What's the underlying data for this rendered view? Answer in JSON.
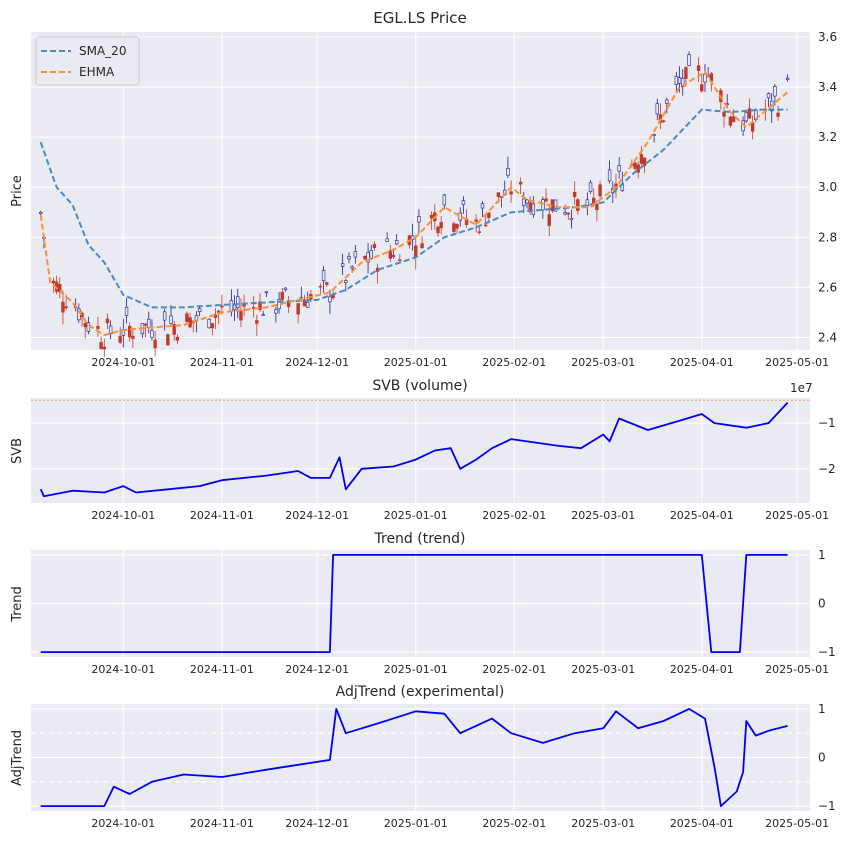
{
  "chart_data": [
    {
      "type": "candlestick",
      "title": "EGL.LS Price",
      "ylabel": "Price",
      "ylim": [
        2.35,
        3.62
      ],
      "yticks": [
        "2.4",
        "2.6",
        "2.8",
        "3.0",
        "3.2",
        "3.4",
        "3.6"
      ],
      "x_start": "2024-09-05",
      "x_end": "2025-04-28",
      "xticks": [
        "2024-10-01",
        "2024-11-01",
        "2024-12-01",
        "2025-01-01",
        "2025-02-01",
        "2025-03-01",
        "2025-04-01",
        "2025-05-01"
      ],
      "legend": {
        "position": "top-left",
        "entries": [
          "SMA_20",
          "EHMA"
        ]
      },
      "colors": {
        "up": "#1f1f8f",
        "down": "#c0392b",
        "sma": "#4a8ac4",
        "ehma": "#ff8f2f",
        "background": "#eaeaf2"
      },
      "series": [
        {
          "name": "SMA_20",
          "style": "dashed",
          "points": [
            [
              "2024-09-05",
              3.18
            ],
            [
              "2024-09-10",
              3.0
            ],
            [
              "2024-09-15",
              2.93
            ],
            [
              "2024-09-20",
              2.77
            ],
            [
              "2024-09-25",
              2.7
            ],
            [
              "2024-10-01",
              2.57
            ],
            [
              "2024-10-10",
              2.52
            ],
            [
              "2024-10-20",
              2.52
            ],
            [
              "2024-11-01",
              2.53
            ],
            [
              "2024-11-15",
              2.54
            ],
            [
              "2024-12-01",
              2.55
            ],
            [
              "2024-12-10",
              2.59
            ],
            [
              "2024-12-20",
              2.67
            ],
            [
              "2025-01-01",
              2.72
            ],
            [
              "2025-01-10",
              2.8
            ],
            [
              "2025-01-20",
              2.84
            ],
            [
              "2025-01-31",
              2.9
            ],
            [
              "2025-02-10",
              2.91
            ],
            [
              "2025-02-20",
              2.92
            ],
            [
              "2025-03-01",
              2.94
            ],
            [
              "2025-03-10",
              3.05
            ],
            [
              "2025-03-20",
              3.15
            ],
            [
              "2025-04-01",
              3.31
            ],
            [
              "2025-04-10",
              3.3
            ],
            [
              "2025-04-20",
              3.31
            ],
            [
              "2025-04-28",
              3.31
            ]
          ]
        },
        {
          "name": "EHMA",
          "style": "dashed",
          "points": [
            [
              "2024-09-05",
              2.89
            ],
            [
              "2024-09-08",
              2.62
            ],
            [
              "2024-09-15",
              2.54
            ],
            [
              "2024-09-20",
              2.45
            ],
            [
              "2024-09-25",
              2.41
            ],
            [
              "2024-10-01",
              2.43
            ],
            [
              "2024-10-10",
              2.44
            ],
            [
              "2024-10-20",
              2.45
            ],
            [
              "2024-11-01",
              2.5
            ],
            [
              "2024-11-15",
              2.52
            ],
            [
              "2024-11-25",
              2.55
            ],
            [
              "2024-12-05",
              2.58
            ],
            [
              "2024-12-15",
              2.7
            ],
            [
              "2024-12-25",
              2.75
            ],
            [
              "2025-01-01",
              2.8
            ],
            [
              "2025-01-10",
              2.92
            ],
            [
              "2025-01-20",
              2.85
            ],
            [
              "2025-01-31",
              3.0
            ],
            [
              "2025-02-05",
              2.95
            ],
            [
              "2025-02-15",
              2.92
            ],
            [
              "2025-02-25",
              2.92
            ],
            [
              "2025-03-05",
              3.0
            ],
            [
              "2025-03-15",
              3.18
            ],
            [
              "2025-03-25",
              3.4
            ],
            [
              "2025-04-02",
              3.46
            ],
            [
              "2025-04-10",
              3.3
            ],
            [
              "2025-04-15",
              3.24
            ],
            [
              "2025-04-28",
              3.38
            ]
          ]
        }
      ]
    },
    {
      "type": "line",
      "title": "SVB (volume)",
      "ylabel": "SVB",
      "offset_text": "1e7",
      "ylim": [
        -2.75,
        -0.45
      ],
      "yticks": [
        "−2",
        "−1"
      ],
      "reference_line": -0.5,
      "series": [
        {
          "name": "SVB",
          "points": [
            [
              "2024-09-05",
              -2.45
            ],
            [
              "2024-09-06",
              -2.6
            ],
            [
              "2024-09-15",
              -2.48
            ],
            [
              "2024-09-25",
              -2.52
            ],
            [
              "2024-10-01",
              -2.38
            ],
            [
              "2024-10-05",
              -2.52
            ],
            [
              "2024-10-15",
              -2.45
            ],
            [
              "2024-10-25",
              -2.38
            ],
            [
              "2024-11-01",
              -2.25
            ],
            [
              "2024-11-15",
              -2.15
            ],
            [
              "2024-11-25",
              -2.05
            ],
            [
              "2024-11-29",
              -2.2
            ],
            [
              "2024-12-05",
              -2.2
            ],
            [
              "2024-12-08",
              -1.75
            ],
            [
              "2024-12-10",
              -2.45
            ],
            [
              "2024-12-15",
              -2.0
            ],
            [
              "2024-12-25",
              -1.95
            ],
            [
              "2025-01-01",
              -1.8
            ],
            [
              "2025-01-07",
              -1.6
            ],
            [
              "2025-01-12",
              -1.55
            ],
            [
              "2025-01-15",
              -2.0
            ],
            [
              "2025-01-20",
              -1.8
            ],
            [
              "2025-01-25",
              -1.55
            ],
            [
              "2025-01-31",
              -1.35
            ],
            [
              "2025-02-15",
              -1.5
            ],
            [
              "2025-02-22",
              -1.55
            ],
            [
              "2025-03-01",
              -1.25
            ],
            [
              "2025-03-03",
              -1.4
            ],
            [
              "2025-03-06",
              -0.9
            ],
            [
              "2025-03-15",
              -1.15
            ],
            [
              "2025-03-25",
              -0.95
            ],
            [
              "2025-04-01",
              -0.8
            ],
            [
              "2025-04-05",
              -1.0
            ],
            [
              "2025-04-15",
              -1.1
            ],
            [
              "2025-04-22",
              -1.0
            ],
            [
              "2025-04-28",
              -0.55
            ]
          ]
        }
      ]
    },
    {
      "type": "line",
      "title": "Trend (trend)",
      "ylabel": "Trend",
      "ylim": [
        -1.1,
        1.1
      ],
      "yticks": [
        "−1",
        "0",
        "1"
      ],
      "series": [
        {
          "name": "Trend",
          "points": [
            [
              "2024-09-05",
              -1
            ],
            [
              "2024-12-05",
              -1
            ],
            [
              "2024-12-06",
              1
            ],
            [
              "2025-04-01",
              1
            ],
            [
              "2025-04-04",
              -1
            ],
            [
              "2025-04-13",
              -1
            ],
            [
              "2025-04-15",
              1
            ],
            [
              "2025-04-28",
              1
            ]
          ]
        }
      ]
    },
    {
      "type": "line",
      "title": "AdjTrend (experimental)",
      "ylabel": "AdjTrend",
      "ylim": [
        -1.1,
        1.1
      ],
      "yticks": [
        "−1",
        "0",
        "1"
      ],
      "reference_lines": [
        0.5,
        -0.5
      ],
      "series": [
        {
          "name": "AdjTrend",
          "points": [
            [
              "2024-09-05",
              -1
            ],
            [
              "2024-09-25",
              -1
            ],
            [
              "2024-09-28",
              -0.6
            ],
            [
              "2024-10-03",
              -0.75
            ],
            [
              "2024-10-10",
              -0.5
            ],
            [
              "2024-10-20",
              -0.35
            ],
            [
              "2024-11-01",
              -0.4
            ],
            [
              "2024-11-15",
              -0.25
            ],
            [
              "2024-11-25",
              -0.15
            ],
            [
              "2024-12-05",
              -0.05
            ],
            [
              "2024-12-07",
              1.0
            ],
            [
              "2024-12-10",
              0.5
            ],
            [
              "2024-12-20",
              0.7
            ],
            [
              "2025-01-01",
              0.95
            ],
            [
              "2025-01-10",
              0.9
            ],
            [
              "2025-01-15",
              0.5
            ],
            [
              "2025-01-25",
              0.8
            ],
            [
              "2025-01-31",
              0.5
            ],
            [
              "2025-02-10",
              0.3
            ],
            [
              "2025-02-20",
              0.5
            ],
            [
              "2025-03-01",
              0.6
            ],
            [
              "2025-03-05",
              0.95
            ],
            [
              "2025-03-12",
              0.6
            ],
            [
              "2025-03-20",
              0.75
            ],
            [
              "2025-03-28",
              1.0
            ],
            [
              "2025-04-02",
              0.8
            ],
            [
              "2025-04-05",
              -0.2
            ],
            [
              "2025-04-07",
              -1.0
            ],
            [
              "2025-04-12",
              -0.7
            ],
            [
              "2025-04-14",
              -0.3
            ],
            [
              "2025-04-15",
              0.75
            ],
            [
              "2025-04-18",
              0.45
            ],
            [
              "2025-04-22",
              0.55
            ],
            [
              "2025-04-28",
              0.65
            ]
          ]
        }
      ]
    }
  ]
}
